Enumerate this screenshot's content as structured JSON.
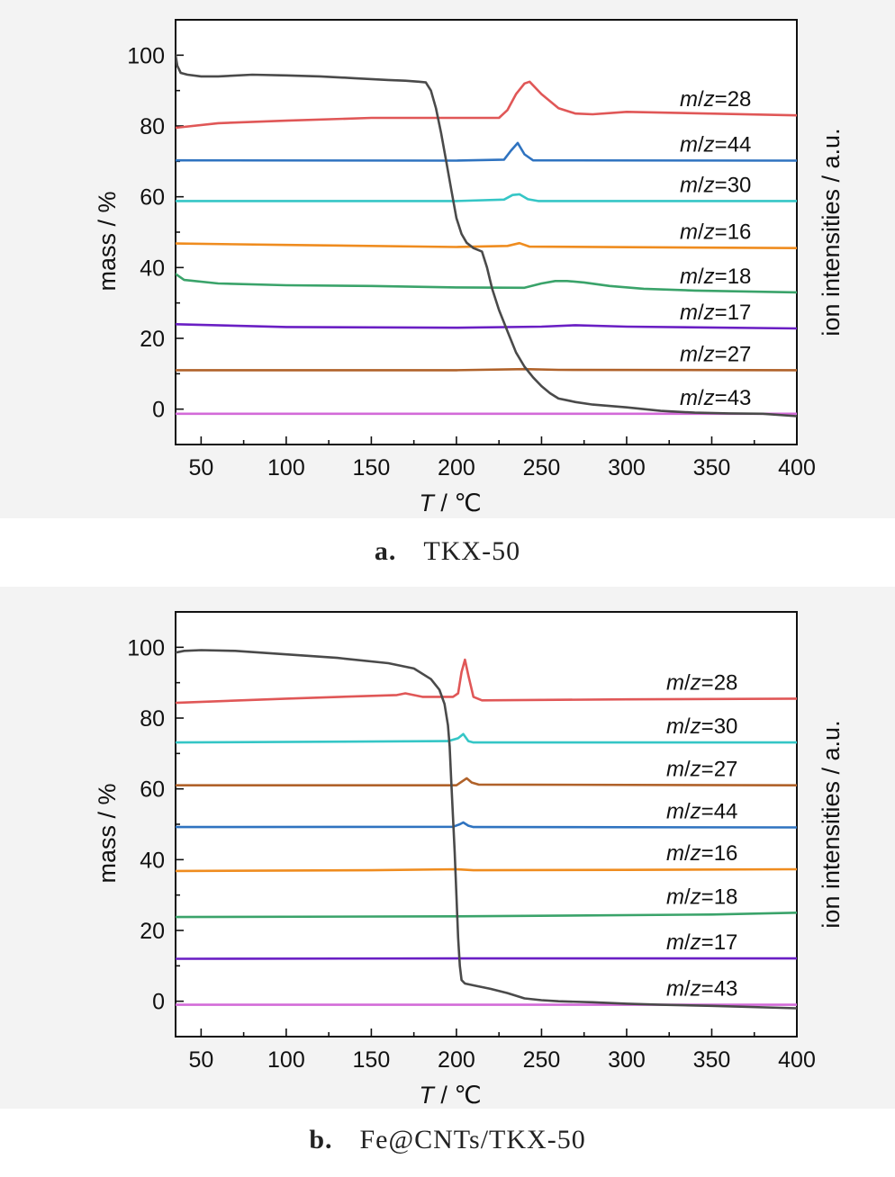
{
  "chart_data": [
    {
      "panel": "a",
      "caption_letter": "a.",
      "caption_text": "TKX-50",
      "type": "line",
      "xlabel_italic": "T",
      "xlabel_rest": " / ℃",
      "ylabel": "mass / %",
      "y2label": "ion intensities / a.u.",
      "xlim": [
        35,
        400
      ],
      "ylim": [
        -10,
        110
      ],
      "xticks": [
        50,
        100,
        150,
        200,
        250,
        300,
        350,
        400
      ],
      "yticks": [
        0,
        20,
        40,
        60,
        80,
        100
      ],
      "grid": false,
      "mass_curve": {
        "color": "#4a4a4a",
        "x": [
          35,
          36,
          38,
          42,
          50,
          60,
          80,
          100,
          120,
          140,
          160,
          170,
          178,
          182,
          185,
          188,
          191,
          194,
          197,
          200,
          203,
          206,
          210,
          215,
          218,
          221,
          225,
          230,
          235,
          240,
          245,
          250,
          255,
          260,
          265,
          270,
          280,
          300,
          320,
          340,
          360,
          380,
          400
        ],
        "y": [
          100,
          97,
          95,
          94.5,
          94,
          94,
          94.5,
          94.3,
          94,
          93.5,
          93,
          92.8,
          92.5,
          92.3,
          90,
          85,
          78,
          70,
          62,
          54,
          49.5,
          47,
          45.5,
          44.5,
          40,
          34,
          28,
          22,
          16,
          12,
          9,
          6.5,
          4.5,
          3,
          2.5,
          2,
          1.3,
          0.5,
          -0.5,
          -1,
          -1.2,
          -1.3,
          -2
        ]
      },
      "ion_curves": [
        {
          "label_italic": "m",
          "label_slash": "/",
          "label_italic2": "z",
          "label_rest": "=28",
          "color": "#e05757",
          "x": [
            35,
            60,
            100,
            150,
            200,
            225,
            230,
            235,
            240,
            243,
            250,
            260,
            270,
            280,
            300,
            400
          ],
          "y": [
            79.5,
            80.8,
            81.5,
            82.3,
            82.3,
            82.3,
            84.5,
            89,
            92,
            92.5,
            89,
            85,
            83.5,
            83.3,
            84,
            83
          ]
        },
        {
          "label_italic": "m",
          "label_slash": "/",
          "label_italic2": "z",
          "label_rest": "=44",
          "color": "#2f73c0",
          "x": [
            35,
            200,
            228,
            232,
            236,
            240,
            245,
            400
          ],
          "y": [
            70.3,
            70.2,
            70.5,
            73,
            75.2,
            72,
            70.3,
            70.2
          ]
        },
        {
          "label_italic": "m",
          "label_slash": "/",
          "label_italic2": "z",
          "label_rest": "=30",
          "color": "#35c6c6",
          "x": [
            35,
            200,
            228,
            233,
            237,
            242,
            248,
            400
          ],
          "y": [
            58.8,
            58.8,
            59.2,
            60.5,
            60.7,
            59.3,
            58.8,
            58.8
          ]
        },
        {
          "label_italic": "m",
          "label_slash": "/",
          "label_italic2": "z",
          "label_rest": "=16",
          "color": "#ef8c1f",
          "x": [
            35,
            100,
            200,
            230,
            237,
            243,
            400
          ],
          "y": [
            46.8,
            46.4,
            45.8,
            46.1,
            46.9,
            45.9,
            45.5
          ]
        },
        {
          "label_italic": "m",
          "label_slash": "/",
          "label_italic2": "z",
          "label_rest": "=18",
          "color": "#3aa36a",
          "x": [
            35,
            40,
            60,
            100,
            150,
            200,
            240,
            250,
            258,
            265,
            275,
            290,
            310,
            340,
            400
          ],
          "y": [
            38.2,
            36.5,
            35.5,
            35,
            34.8,
            34.4,
            34.3,
            35.5,
            36.2,
            36.2,
            35.8,
            34.8,
            34,
            33.5,
            33
          ]
        },
        {
          "label_italic": "m",
          "label_slash": "/",
          "label_italic2": "z",
          "label_rest": "=17",
          "color": "#6a1fc4",
          "x": [
            35,
            100,
            200,
            250,
            270,
            300,
            400
          ],
          "y": [
            24,
            23.2,
            23,
            23.3,
            23.7,
            23.3,
            22.8
          ]
        },
        {
          "label_italic": "m",
          "label_slash": "/",
          "label_italic2": "z",
          "label_rest": "=27",
          "color": "#b0622a",
          "x": [
            35,
            200,
            240,
            260,
            400
          ],
          "y": [
            11,
            11,
            11.3,
            11.1,
            11
          ]
        },
        {
          "label_italic": "m",
          "label_slash": "/",
          "label_italic2": "z",
          "label_rest": "=43",
          "color": "#d36bd8",
          "x": [
            35,
            400
          ],
          "y": [
            -1.3,
            -1.3
          ]
        }
      ]
    },
    {
      "panel": "b",
      "caption_letter": "b.",
      "caption_text": "Fe@CNTs/TKX-50",
      "type": "line",
      "xlabel_italic": "T",
      "xlabel_rest": " / ℃",
      "ylabel": "mass / %",
      "y2label": "ion intensities / a.u.",
      "xlim": [
        35,
        400
      ],
      "ylim": [
        -10,
        110
      ],
      "xticks": [
        50,
        100,
        150,
        200,
        250,
        300,
        350,
        400
      ],
      "yticks": [
        0,
        20,
        40,
        60,
        80,
        100
      ],
      "grid": false,
      "mass_curve": {
        "color": "#4a4a4a",
        "x": [
          35,
          40,
          50,
          70,
          100,
          130,
          160,
          175,
          185,
          190,
          193,
          195,
          196,
          197,
          198,
          199,
          200,
          201,
          202,
          203,
          205,
          210,
          220,
          230,
          240,
          250,
          260,
          280,
          300,
          320,
          350,
          400
        ],
        "y": [
          98.5,
          99,
          99.2,
          99,
          98,
          97,
          95.5,
          94,
          91,
          88,
          84,
          78,
          72,
          62,
          52,
          42,
          30,
          18,
          10,
          6,
          5,
          4.5,
          3.5,
          2.3,
          0.8,
          0.3,
          0,
          -0.3,
          -0.7,
          -1,
          -1.3,
          -2
        ]
      },
      "ion_curves": [
        {
          "label_italic": "m",
          "label_slash": "/",
          "label_italic2": "z",
          "label_rest": "=28",
          "color": "#e05757",
          "x": [
            35,
            100,
            165,
            170,
            180,
            198,
            201,
            203,
            205,
            207,
            210,
            215,
            300,
            400
          ],
          "y": [
            84.3,
            85.5,
            86.5,
            87,
            86,
            86,
            87,
            93,
            96.5,
            92,
            86,
            85,
            85.3,
            85.5
          ]
        },
        {
          "label_italic": "m",
          "label_slash": "/",
          "label_italic2": "z",
          "label_rest": "=30",
          "color": "#35c6c6",
          "x": [
            35,
            195,
            201,
            204,
            207,
            210,
            400
          ],
          "y": [
            73.1,
            73.5,
            74.3,
            75.5,
            73.5,
            73.1,
            73.1
          ]
        },
        {
          "label_italic": "m",
          "label_slash": "/",
          "label_italic2": "z",
          "label_rest": "=27",
          "color": "#b0622a",
          "x": [
            35,
            200,
            203,
            206,
            209,
            213,
            400
          ],
          "y": [
            61,
            61,
            62,
            63,
            61.8,
            61.2,
            61
          ]
        },
        {
          "label_italic": "m",
          "label_slash": "/",
          "label_italic2": "z",
          "label_rest": "=44",
          "color": "#2f73c0",
          "x": [
            35,
            198,
            202,
            204,
            207,
            210,
            400
          ],
          "y": [
            49.2,
            49.3,
            50,
            50.5,
            49.6,
            49.2,
            49.1
          ]
        },
        {
          "label_italic": "m",
          "label_slash": "/",
          "label_italic2": "z",
          "label_rest": "=16",
          "color": "#ef8c1f",
          "x": [
            35,
            150,
            200,
            210,
            300,
            400
          ],
          "y": [
            36.8,
            37,
            37.3,
            37,
            37.1,
            37.3
          ]
        },
        {
          "label_italic": "m",
          "label_slash": "/",
          "label_italic2": "z",
          "label_rest": "=18",
          "color": "#3aa36a",
          "x": [
            35,
            200,
            350,
            400
          ],
          "y": [
            23.8,
            24,
            24.5,
            25
          ]
        },
        {
          "label_italic": "m",
          "label_slash": "/",
          "label_italic2": "z",
          "label_rest": "=17",
          "color": "#6a1fc4",
          "x": [
            35,
            200,
            400
          ],
          "y": [
            12,
            12.1,
            12.1
          ]
        },
        {
          "label_italic": "m",
          "label_slash": "/",
          "label_italic2": "z",
          "label_rest": "=43",
          "color": "#d36bd8",
          "x": [
            35,
            400
          ],
          "y": [
            -1,
            -1
          ]
        }
      ]
    }
  ]
}
